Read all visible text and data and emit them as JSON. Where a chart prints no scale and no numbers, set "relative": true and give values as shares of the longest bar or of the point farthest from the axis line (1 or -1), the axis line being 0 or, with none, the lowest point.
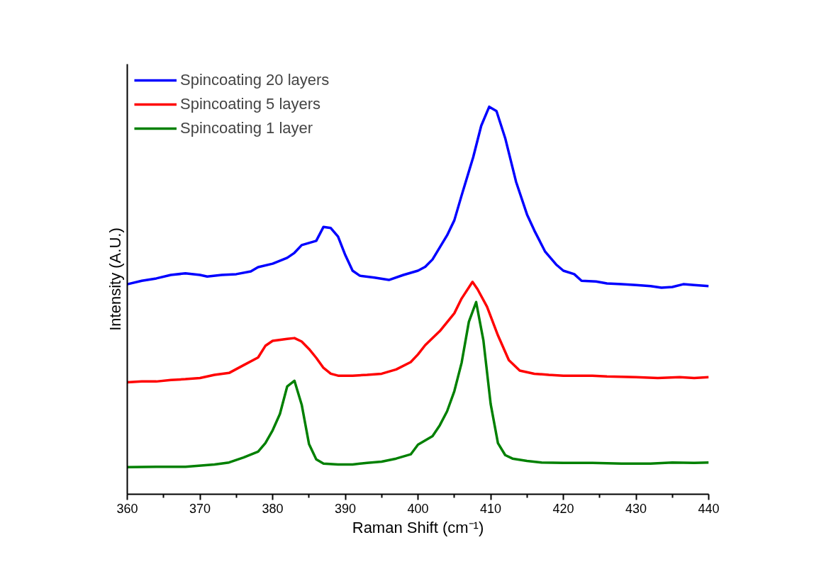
{
  "chart_data": {
    "type": "line",
    "xlabel": "Raman Shift (cm⁻¹)",
    "ylabel": "Intensity (A.U.)",
    "relative": true,
    "xlim": [
      360,
      440
    ],
    "xticks": [
      360,
      370,
      380,
      390,
      400,
      410,
      420,
      430,
      440
    ],
    "grid": false,
    "legend": "top left",
    "marker": "none",
    "line_style": "solid",
    "series": [
      {
        "name": "Spincoating 20 layers",
        "color": "#0000ff",
        "x": [
          360,
          362,
          364,
          366,
          368,
          370,
          371,
          373,
          375,
          377,
          378,
          380,
          382,
          383,
          384,
          386,
          387,
          388,
          389,
          390,
          391,
          392,
          394,
          396,
          398,
          400,
          401,
          402,
          404,
          405,
          406,
          407.6,
          408.7,
          409.8,
          410.8,
          412,
          413.5,
          415,
          416,
          417.5,
          419,
          420,
          421.5,
          422.5,
          424.5,
          426,
          428,
          430,
          432,
          433.5,
          435,
          436.5,
          438,
          440
        ],
        "values": [
          0.542,
          0.551,
          0.557,
          0.566,
          0.57,
          0.566,
          0.562,
          0.566,
          0.568,
          0.575,
          0.586,
          0.595,
          0.61,
          0.623,
          0.643,
          0.654,
          0.69,
          0.687,
          0.665,
          0.617,
          0.577,
          0.564,
          0.559,
          0.553,
          0.566,
          0.577,
          0.587,
          0.606,
          0.668,
          0.707,
          0.771,
          0.87,
          0.951,
          1,
          0.989,
          0.919,
          0.806,
          0.722,
          0.681,
          0.626,
          0.593,
          0.577,
          0.568,
          0.551,
          0.549,
          0.544,
          0.542,
          0.54,
          0.537,
          0.533,
          0.535,
          0.542,
          0.54,
          0.537
        ]
      },
      {
        "name": "Spincoating 5 layers",
        "color": "#ff0000",
        "x": [
          360,
          362,
          364,
          366,
          368,
          370,
          372,
          374,
          376,
          378,
          379,
          380,
          382,
          383,
          384,
          385,
          386,
          387,
          388,
          389,
          391,
          393,
          395,
          397,
          399,
          400,
          401,
          403,
          405,
          406,
          407.5,
          408.2,
          409.5,
          411,
          412.5,
          414,
          416,
          418,
          420,
          422,
          424,
          426,
          430,
          433,
          436,
          438,
          440
        ],
        "values": [
          0.289,
          0.291,
          0.291,
          0.295,
          0.297,
          0.3,
          0.308,
          0.313,
          0.333,
          0.353,
          0.383,
          0.396,
          0.401,
          0.403,
          0.394,
          0.375,
          0.352,
          0.326,
          0.311,
          0.306,
          0.306,
          0.308,
          0.311,
          0.322,
          0.341,
          0.361,
          0.385,
          0.421,
          0.467,
          0.505,
          0.548,
          0.529,
          0.484,
          0.41,
          0.346,
          0.319,
          0.311,
          0.308,
          0.306,
          0.306,
          0.306,
          0.304,
          0.302,
          0.3,
          0.302,
          0.3,
          0.302
        ]
      },
      {
        "name": "Spincoating 1 layer",
        "color": "#008000",
        "x": [
          360,
          364,
          368,
          372,
          374,
          376,
          378,
          379,
          380,
          381,
          382,
          383,
          384,
          385,
          386,
          387,
          389,
          391,
          393,
          395,
          397,
          399,
          400,
          402,
          403,
          404,
          405,
          406,
          407,
          408,
          409,
          410,
          411,
          412,
          413,
          415,
          417,
          420,
          424,
          428,
          432,
          435,
          438,
          440
        ],
        "values": [
          0.07,
          0.071,
          0.071,
          0.077,
          0.082,
          0.095,
          0.11,
          0.132,
          0.165,
          0.207,
          0.278,
          0.293,
          0.231,
          0.13,
          0.09,
          0.079,
          0.077,
          0.077,
          0.081,
          0.084,
          0.092,
          0.103,
          0.128,
          0.15,
          0.178,
          0.214,
          0.266,
          0.339,
          0.445,
          0.496,
          0.397,
          0.233,
          0.132,
          0.101,
          0.092,
          0.086,
          0.082,
          0.081,
          0.081,
          0.079,
          0.079,
          0.082,
          0.081,
          0.082
        ]
      }
    ]
  }
}
